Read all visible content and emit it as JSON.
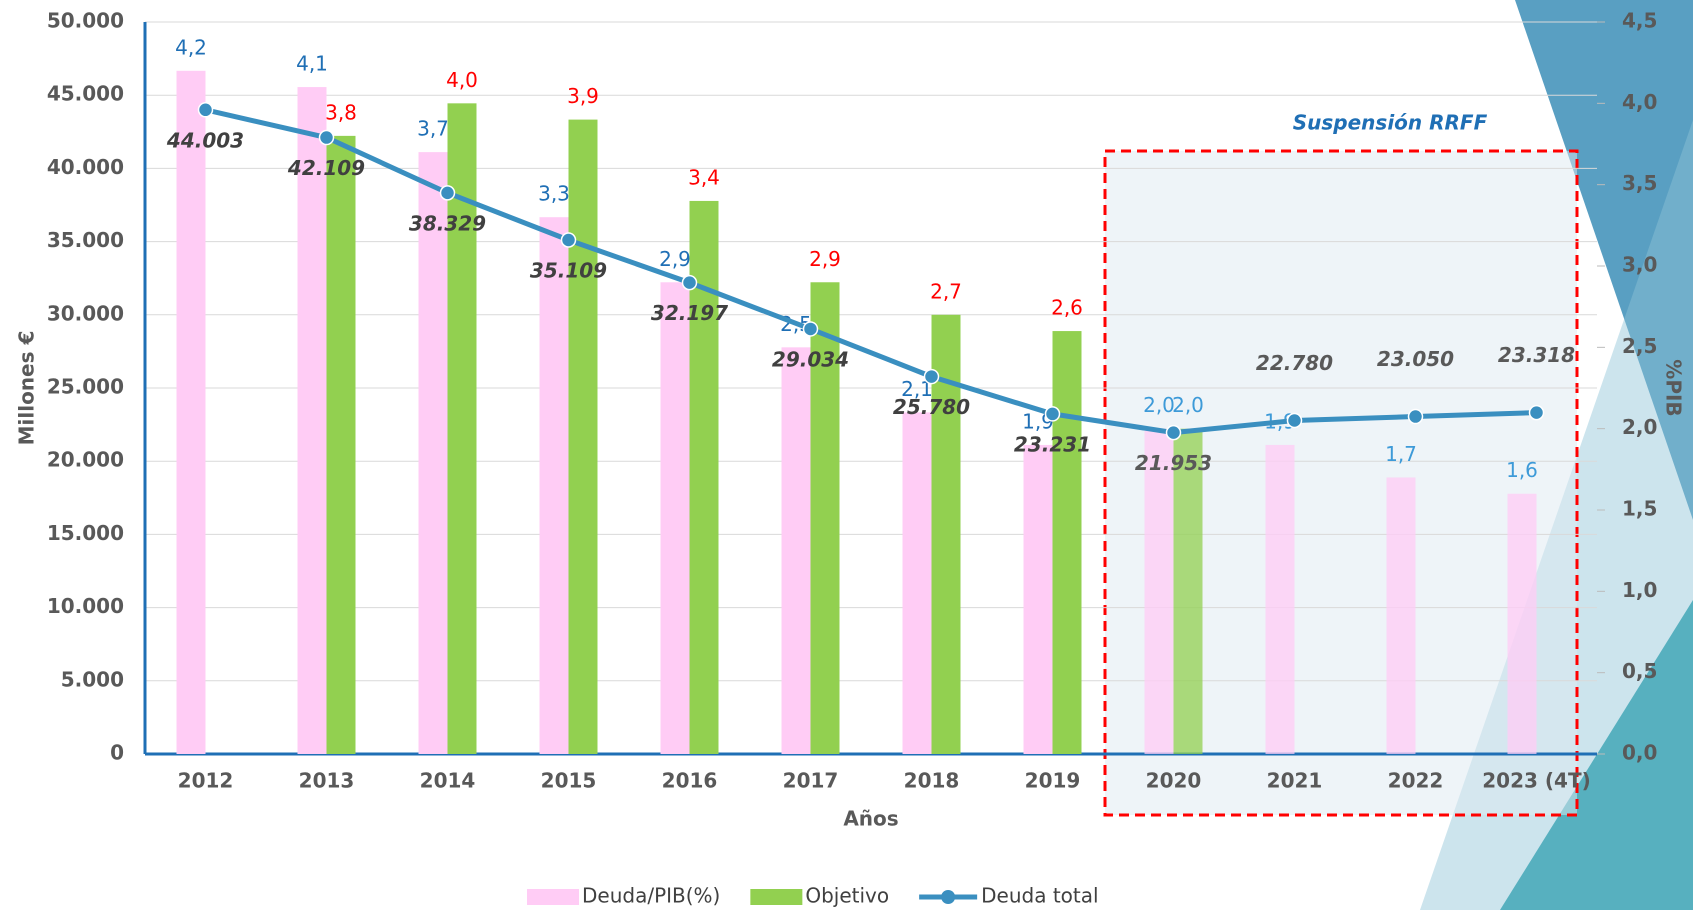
{
  "chart_data": {
    "type": "bar-line",
    "categories": [
      "2012",
      "2013",
      "2014",
      "2015",
      "2016",
      "2017",
      "2018",
      "2019",
      "2020",
      "2021",
      "2022",
      "2023 (4T)"
    ],
    "series": [
      {
        "name": "Deuda/PIB(%)",
        "color": "#ffccf5",
        "axis": "y2",
        "kind": "bar",
        "values": [
          4.2,
          4.1,
          3.7,
          3.3,
          2.9,
          2.5,
          2.1,
          1.9,
          2.0,
          1.9,
          1.7,
          1.6
        ],
        "value_labels": [
          "4,2",
          "4,1",
          "3,7",
          "3,3",
          "2,9",
          "2,5",
          "2,1",
          "1,9",
          "2,0",
          "1,9",
          "1,7",
          "1,6"
        ]
      },
      {
        "name": "Objetivo",
        "color": "#92d050",
        "axis": "y2",
        "kind": "bar",
        "values": [
          null,
          3.8,
          4.0,
          3.9,
          3.4,
          2.9,
          2.7,
          2.6,
          2.0,
          null,
          null,
          null
        ],
        "value_labels": [
          null,
          "3,8",
          "4,0",
          "3,9",
          "3,4",
          "2,9",
          "2,7",
          "2,6",
          "2,0",
          null,
          null,
          null
        ]
      },
      {
        "name": "Deuda total",
        "color": "#3a8fc0",
        "kind": "line",
        "values": [
          44003,
          42109,
          38329,
          35109,
          32197,
          29034,
          25780,
          23231,
          21953,
          22780,
          23050,
          23318
        ],
        "value_labels": [
          "44.003",
          "42.109",
          "38.329",
          "35.109",
          "32.197",
          "29.034",
          "25.780",
          "23.231",
          "21.953",
          "22.780",
          "23.050",
          "23.318"
        ]
      }
    ],
    "ylim": [
      0,
      50000
    ],
    "yticks": [
      {
        "value": 0,
        "label": "0"
      },
      {
        "value": 5000,
        "label": "5.000"
      },
      {
        "value": 10000,
        "label": "10.000"
      },
      {
        "value": 15000,
        "label": "15.000"
      },
      {
        "value": 20000,
        "label": "20.000"
      },
      {
        "value": 25000,
        "label": "25.000"
      },
      {
        "value": 30000,
        "label": "30.000"
      },
      {
        "value": 35000,
        "label": "35.000"
      },
      {
        "value": 40000,
        "label": "40.000"
      },
      {
        "value": 45000,
        "label": "45.000"
      },
      {
        "value": 50000,
        "label": "50.000"
      }
    ],
    "y2lim": [
      0,
      4.5
    ],
    "y2ticks": [
      {
        "value": 0,
        "label": "0,0"
      },
      {
        "value": 0.5,
        "label": "0,5"
      },
      {
        "value": 1,
        "label": "1,0"
      },
      {
        "value": 1.5,
        "label": "1,5"
      },
      {
        "value": 2,
        "label": "2,0"
      },
      {
        "value": 2.5,
        "label": "2,5"
      },
      {
        "value": 3,
        "label": "3,0"
      },
      {
        "value": 3.5,
        "label": "3,5"
      },
      {
        "value": 4,
        "label": "4,0"
      },
      {
        "value": 4.5,
        "label": "4,5"
      }
    ],
    "y_label": "Millones €",
    "y2_label": "%PIB",
    "x_label": "Años",
    "annotation": "Suspensión RRFF",
    "grid": true,
    "legend": "bottom"
  }
}
